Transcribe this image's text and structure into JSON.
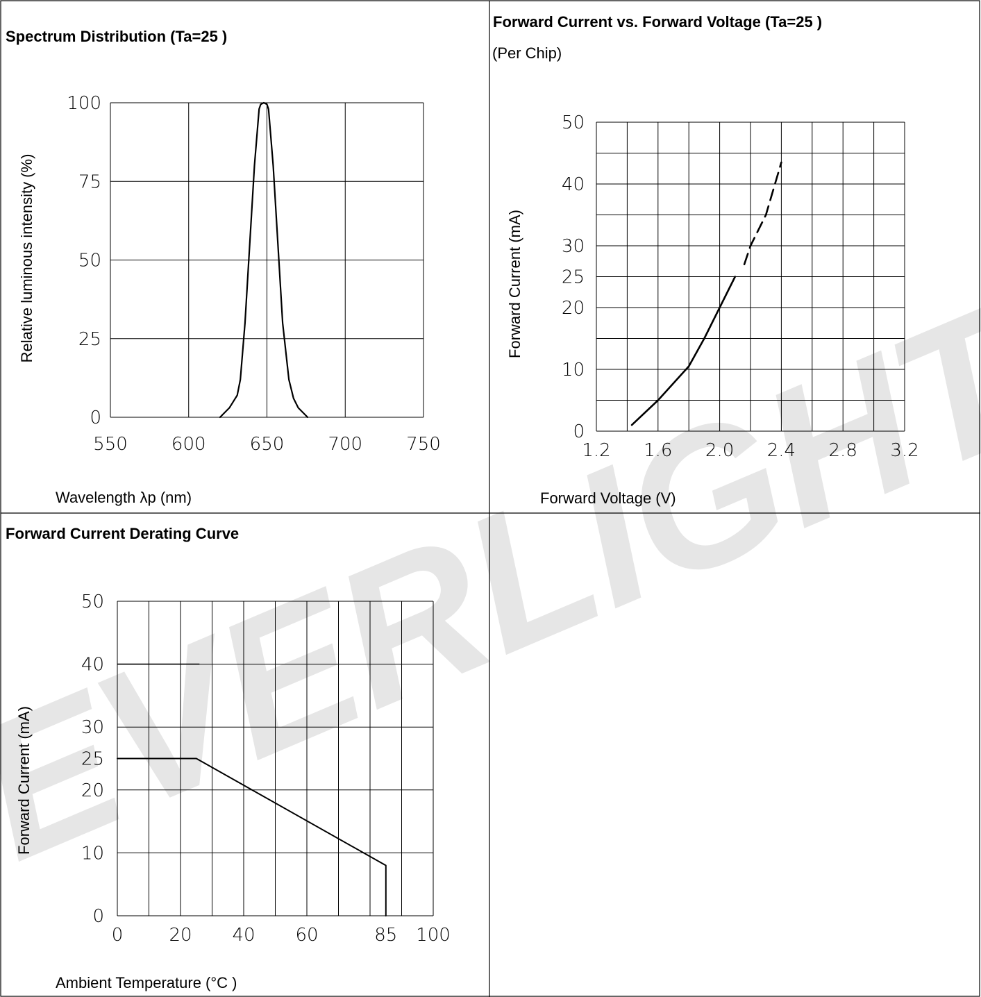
{
  "watermark": {
    "text": "EVERLIGHT",
    "color": "#e6e6e6"
  },
  "chart_data": [
    {
      "id": "spectrum",
      "type": "line",
      "title": "Spectrum Distribution (Ta=25 )",
      "subtitle": "",
      "xlabel": "Wavelength λp (nm)",
      "ylabel": "Relative luminous intensity (%)",
      "xlim": [
        550,
        750
      ],
      "ylim": [
        0,
        100
      ],
      "xticks": [
        550,
        600,
        650,
        700,
        750
      ],
      "yticks": [
        0,
        25,
        50,
        75,
        100
      ],
      "xtick_labels": [
        "550",
        "600",
        "650",
        "700",
        "750"
      ],
      "ytick_labels": [
        "0",
        "25",
        "50",
        "75",
        "100"
      ],
      "xgrid": [
        550,
        600,
        650,
        700,
        750
      ],
      "ygrid": [
        0,
        25,
        50,
        75,
        100
      ],
      "grid": true,
      "series": [
        {
          "values": [
            {
              "x": 620,
              "y": 0
            },
            {
              "x": 626,
              "y": 3
            },
            {
              "x": 631,
              "y": 7
            },
            {
              "x": 633,
              "y": 12
            },
            {
              "x": 636,
              "y": 30
            },
            {
              "x": 639,
              "y": 55
            },
            {
              "x": 642,
              "y": 80
            },
            {
              "x": 645,
              "y": 98
            },
            {
              "x": 646,
              "y": 99.5
            },
            {
              "x": 648,
              "y": 100
            },
            {
              "x": 650,
              "y": 99.5
            },
            {
              "x": 651,
              "y": 98
            },
            {
              "x": 654,
              "y": 80
            },
            {
              "x": 657,
              "y": 55
            },
            {
              "x": 660,
              "y": 30
            },
            {
              "x": 664,
              "y": 12
            },
            {
              "x": 667,
              "y": 6
            },
            {
              "x": 670,
              "y": 3
            },
            {
              "x": 676,
              "y": 0
            }
          ],
          "style": "solid"
        }
      ]
    },
    {
      "id": "iv",
      "type": "line",
      "title": "Forward Current vs. Forward Voltage (Ta=25 )",
      "subtitle": "(Per Chip)",
      "xlabel": "Forward Voltage (V)",
      "ylabel": "Forward Current (mA)",
      "xlim": [
        1.2,
        3.2
      ],
      "ylim": [
        0,
        50
      ],
      "xticks": [
        1.2,
        1.6,
        2.0,
        2.4,
        2.8,
        3.2
      ],
      "yticks": [
        0,
        10,
        20,
        25,
        30,
        40,
        50
      ],
      "xtick_labels": [
        "1.2",
        "1.6",
        "2.0",
        "2.4",
        "2.8",
        "3.2"
      ],
      "ytick_labels": [
        "0",
        "10",
        "20",
        "25",
        "30",
        "40",
        "50"
      ],
      "xgrid": [
        1.2,
        1.4,
        1.6,
        1.8,
        2.0,
        2.2,
        2.4,
        2.6,
        2.8,
        3.0,
        3.2
      ],
      "ygrid": [
        0,
        5,
        10,
        15,
        20,
        25,
        30,
        35,
        40,
        45,
        50
      ],
      "grid": true,
      "series": [
        {
          "values": [
            {
              "x": 1.43,
              "y": 1
            },
            {
              "x": 1.6,
              "y": 5
            },
            {
              "x": 1.8,
              "y": 10.5
            },
            {
              "x": 1.9,
              "y": 15
            },
            {
              "x": 2.0,
              "y": 20
            },
            {
              "x": 2.1,
              "y": 25
            }
          ],
          "style": "solid"
        },
        {
          "values": [
            {
              "x": 2.16,
              "y": 27
            },
            {
              "x": 2.2,
              "y": 30
            },
            {
              "x": 2.3,
              "y": 35
            },
            {
              "x": 2.4,
              "y": 43.5
            }
          ],
          "style": "dashed"
        }
      ]
    },
    {
      "id": "derating",
      "type": "line",
      "title": "Forward Current Derating Curve",
      "subtitle": "",
      "xlabel": "Ambient Temperature (°C )",
      "ylabel": "Forward Current (mA)",
      "xlim": [
        0,
        100
      ],
      "ylim": [
        0,
        50
      ],
      "xticks": [
        0,
        20,
        40,
        60,
        85,
        100
      ],
      "yticks": [
        0,
        10,
        20,
        25,
        30,
        40,
        50
      ],
      "xtick_labels": [
        "0",
        "20",
        "40",
        "60",
        "85",
        "100"
      ],
      "ytick_labels": [
        "0",
        "10",
        "20",
        "25",
        "30",
        "40",
        "50"
      ],
      "xgrid": [
        0,
        10,
        20,
        30,
        40,
        50,
        60,
        70,
        80,
        90,
        100
      ],
      "ygrid": [
        0,
        10,
        20,
        30,
        40,
        50
      ],
      "grid": true,
      "series": [
        {
          "values": [
            {
              "x": 0,
              "y": 25
            },
            {
              "x": 25,
              "y": 25
            },
            {
              "x": 85,
              "y": 8
            },
            {
              "x": 85,
              "y": 0
            }
          ],
          "style": "solid"
        }
      ]
    }
  ]
}
